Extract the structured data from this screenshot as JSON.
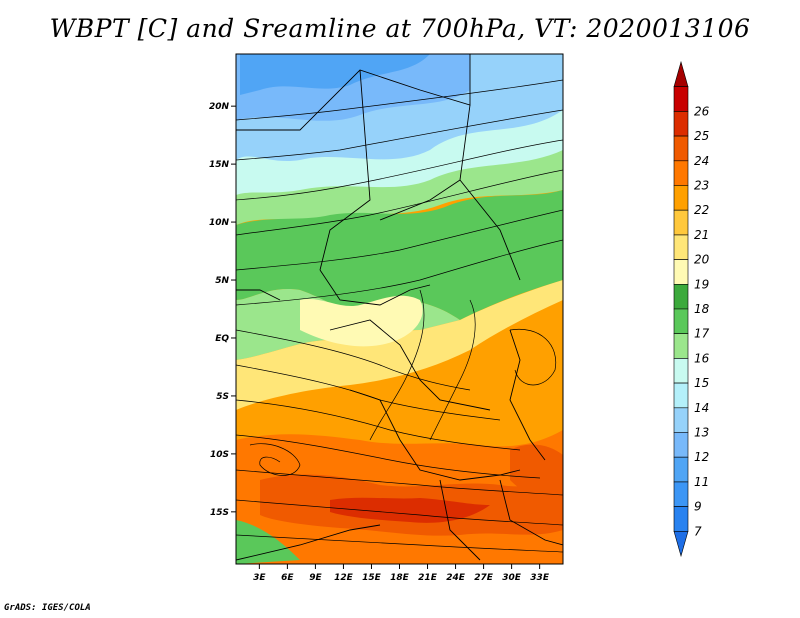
{
  "title": "WBPT [C] and Sreamline at 700hPa, VT: 2020013106",
  "credit": "GrADS: IGES/COLA",
  "map": {
    "lat_labels": [
      "20N",
      "15N",
      "10N",
      "5N",
      "EQ",
      "5S",
      "10S",
      "15S"
    ],
    "lat_values": [
      20,
      15,
      10,
      5,
      0,
      -5,
      -10,
      -15
    ],
    "lon_labels": [
      "3E",
      "6E",
      "9E",
      "12E",
      "15E",
      "18E",
      "21E",
      "24E",
      "27E",
      "30E",
      "33E"
    ],
    "lon_values": [
      3,
      6,
      9,
      12,
      15,
      18,
      21,
      24,
      27,
      30,
      33
    ],
    "lat_range": [
      -19.5,
      24.5
    ],
    "lon_range": [
      0.5,
      35.5
    ]
  },
  "colorbar": {
    "labels": [
      "7",
      "9",
      "11",
      "12",
      "13",
      "14",
      "15",
      "16",
      "17",
      "18",
      "19",
      "20",
      "21",
      "22",
      "23",
      "24",
      "25",
      "26"
    ],
    "colors": [
      "#1e6ee6",
      "#2882f0",
      "#3c96f5",
      "#50a5f5",
      "#78b9fa",
      "#96d2fa",
      "#b4f0fa",
      "#c8faf0",
      "#9be68c",
      "#5ac85a",
      "#3caa3c",
      "#fffab4",
      "#ffe678",
      "#ffc83c",
      "#ffa000",
      "#ff7800",
      "#f05a00",
      "#dc2d00",
      "#c80000",
      "#a50000"
    ]
  }
}
